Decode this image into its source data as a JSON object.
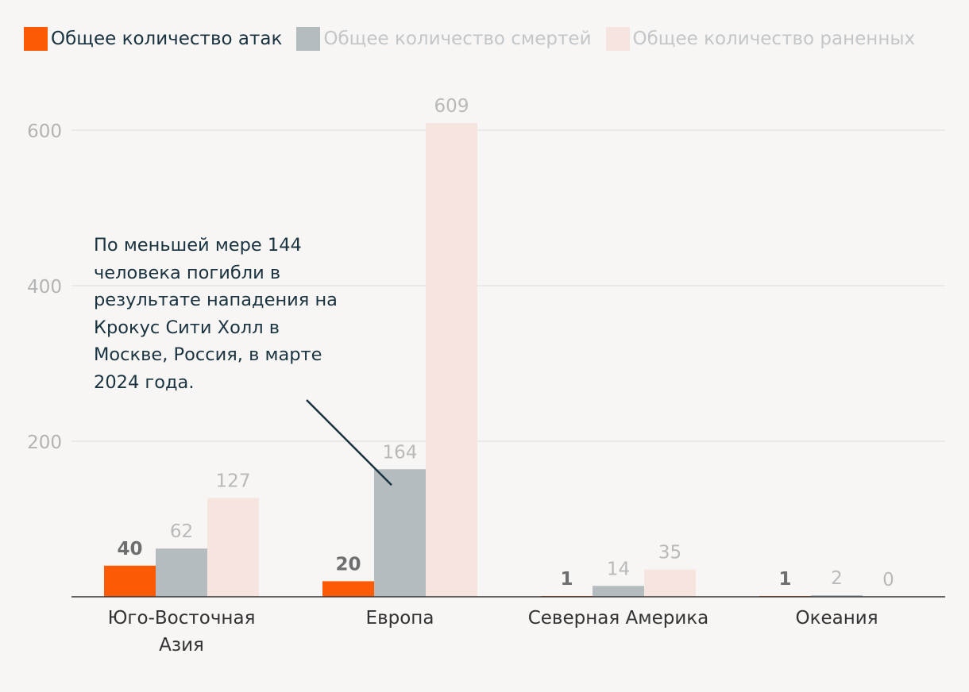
{
  "legend": {
    "attacks": "Общее количество атак",
    "deaths": "Общее количество смертей",
    "injured": "Общее количество раненных"
  },
  "annotation": {
    "text": "По меньшей мере 144 человека погибли в результате нападения на Крокус Сити Холл в Москве, Россия, в марте 2024 года."
  },
  "chart_data": {
    "type": "bar",
    "categories": [
      [
        "Юго-Восточная",
        "Азия"
      ],
      [
        "Европа"
      ],
      [
        "Северная Америка"
      ],
      [
        "Океания"
      ]
    ],
    "series": [
      {
        "name": "Общее количество атак",
        "values": [
          40,
          20,
          1,
          1
        ],
        "labels": [
          "40",
          "20",
          "1",
          "1"
        ],
        "color": "#fd5a06",
        "label_color": "#6e6e6e",
        "label_bold": true
      },
      {
        "name": "Общее количество смертей",
        "values": [
          62,
          164,
          14,
          2
        ],
        "labels": [
          "62",
          "164",
          "14",
          "2"
        ],
        "color": "#b5bcbf",
        "label_color": "#b9b9b9",
        "label_bold": false
      },
      {
        "name": "Общее количество раненных",
        "values": [
          127,
          609,
          35,
          0
        ],
        "labels": [
          "127",
          "609",
          "35",
          "0"
        ],
        "color": "#f6e4df",
        "label_color": "#b9b9b9",
        "label_bold": false
      }
    ],
    "yticks": [
      200,
      400,
      600
    ],
    "ylim": [
      0,
      640
    ],
    "grid": true,
    "legend_position": "top-left",
    "xlabel": "",
    "ylabel": ""
  }
}
